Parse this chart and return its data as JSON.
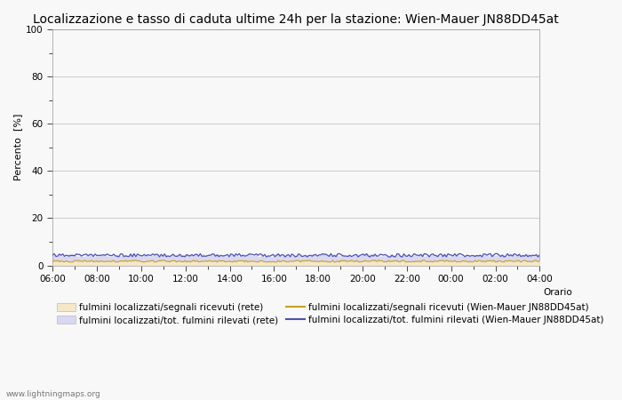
{
  "title": "Localizzazione e tasso di caduta ultime 24h per la stazione: Wien-Mauer JN88DD45at",
  "ylabel": "Percento  [%]",
  "xlabel_right": "Orario",
  "ylim": [
    0,
    100
  ],
  "yticks_major": [
    0,
    20,
    40,
    60,
    80,
    100
  ],
  "yticks_minor": [
    10,
    30,
    50,
    70,
    90
  ],
  "x_tick_labels": [
    "06:00",
    "08:00",
    "10:00",
    "12:00",
    "14:00",
    "16:00",
    "18:00",
    "20:00",
    "22:00",
    "00:00",
    "02:00",
    "04:00"
  ],
  "n_points": 288,
  "fill_rete_signals_color": "#f5e8c8",
  "fill_rete_signals_value": 1.8,
  "fill_rete_total_color": "#d8d8f0",
  "fill_rete_total_value": 4.2,
  "line_wien_signals_color": "#c8a020",
  "line_wien_signals_value": 1.8,
  "line_wien_total_color": "#5050b0",
  "line_wien_total_value": 4.2,
  "background_color": "#f8f8f8",
  "plot_bg_color": "#f8f8f8",
  "grid_color": "#bbbbbb",
  "legend_labels": [
    "fulmini localizzati/segnali ricevuti (rete)",
    "fulmini localizzati/tot. fulmini rilevati (rete)",
    "fulmini localizzati/segnali ricevuti (Wien-Mauer JN88DD45at)",
    "fulmini localizzati/tot. fulmini rilevati (Wien-Mauer JN88DD45at)"
  ],
  "watermark": "www.lightningmaps.org",
  "title_fontsize": 10,
  "tick_fontsize": 7.5,
  "legend_fontsize": 7.5,
  "ylabel_fontsize": 8
}
